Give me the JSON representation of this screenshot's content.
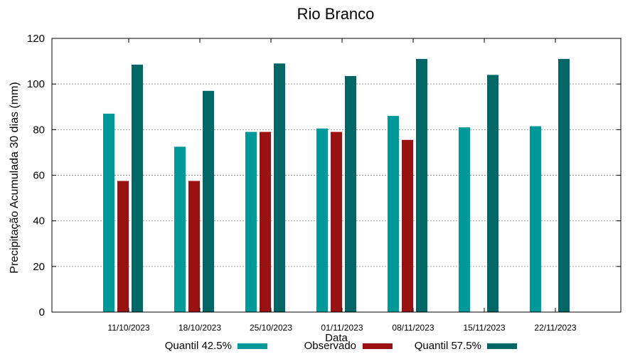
{
  "chart_data": {
    "type": "bar",
    "title": "Rio Branco",
    "xlabel": "Data",
    "ylabel": "Precipitação Acumulada 30 dias (mm)",
    "ylim": [
      0,
      120
    ],
    "yticks": [
      0,
      20,
      40,
      60,
      80,
      100,
      120
    ],
    "grid": true,
    "legend": "bottom",
    "categories": [
      "11/10/2023",
      "18/10/2023",
      "25/10/2023",
      "01/11/2023",
      "08/11/2023",
      "15/11/2023",
      "22/11/2023"
    ],
    "series": [
      {
        "name": "Quantil 42.5%",
        "color": "#009999",
        "values": [
          87,
          72.5,
          79,
          80.5,
          86,
          81,
          81.5
        ]
      },
      {
        "name": "Observado",
        "color": "#991111",
        "values": [
          57.5,
          57.5,
          79,
          79,
          75.5,
          null,
          null
        ]
      },
      {
        "name": "Quantil 57.5%",
        "color": "#006666",
        "values": [
          108.5,
          97,
          109,
          103.5,
          111,
          104,
          111
        ]
      }
    ]
  }
}
